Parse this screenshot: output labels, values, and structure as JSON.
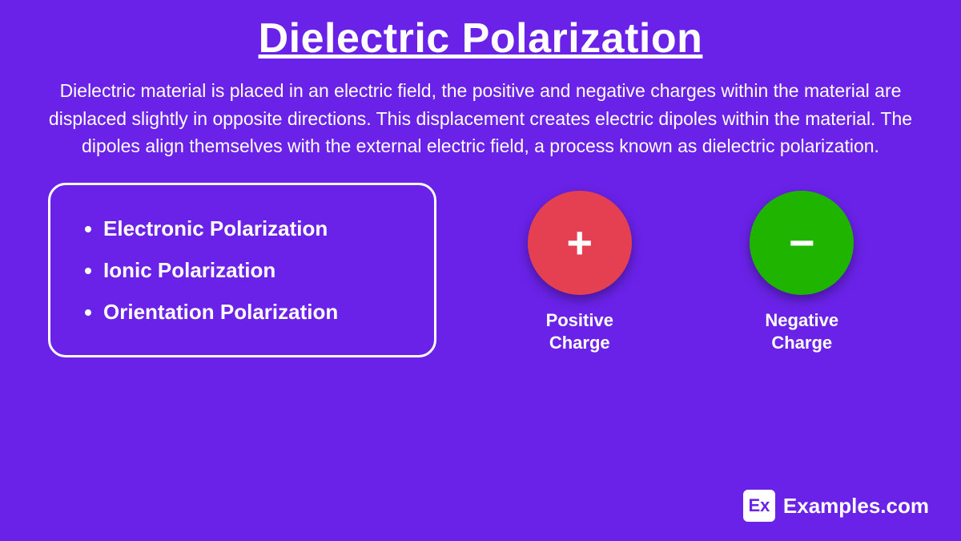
{
  "title": "Dielectric Polarization",
  "title_fontsize": 52,
  "title_underline": true,
  "background_color": "#6a22e8",
  "text_color": "#ffffff",
  "description": "Dielectric material is placed in an electric field, the positive and negative charges within the material are displaced slightly in opposite directions. This displacement creates electric dipoles within the material. The dipoles align themselves with the external electric field, a process known as dielectric polarization.",
  "description_fontsize": 23,
  "types_box": {
    "border_color": "#ffffff",
    "border_width": 3,
    "border_radius": 22,
    "item_fontsize": 26,
    "item_fontweight": 700,
    "items": [
      "Electronic Polarization",
      "Ionic Polarization",
      "Orientation Polarization"
    ]
  },
  "charges": {
    "circle_diameter": 130,
    "symbol_fontsize": 56,
    "label_fontsize": 22,
    "shadow_color": "rgba(0,0,0,0.35)",
    "positive": {
      "symbol": "+",
      "color": "#e54052",
      "label_line1": "Positive",
      "label_line2": "Charge"
    },
    "negative": {
      "symbol": "−",
      "color": "#1fb400",
      "label_line1": "Negative",
      "label_line2": "Charge"
    }
  },
  "brand": {
    "badge_text": "Ex",
    "badge_bg": "#ffffff",
    "badge_fg": "#6a22e8",
    "text": "Examples.com",
    "fontsize": 26
  }
}
